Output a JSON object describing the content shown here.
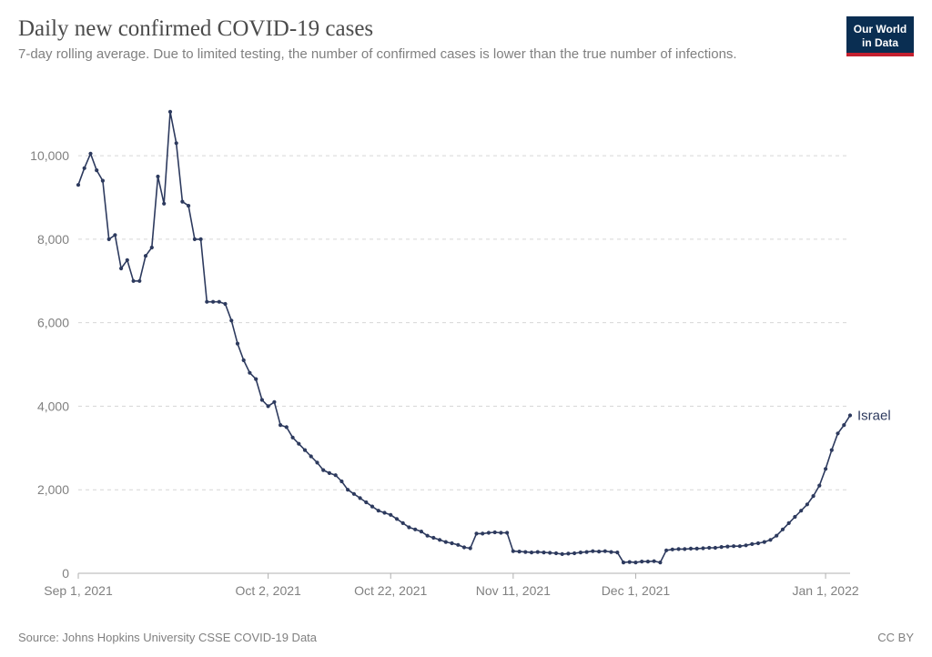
{
  "header": {
    "title": "Daily new confirmed COVID-19 cases",
    "subtitle": "7-day rolling average. Due to limited testing, the number of confirmed cases is lower than the true number of infections."
  },
  "logo": {
    "line1": "Our World",
    "line2": "in Data"
  },
  "footer": {
    "source": "Source: Johns Hopkins University CSSE COVID-19 Data",
    "license": "CC BY"
  },
  "chart": {
    "type": "line",
    "background_color": "#ffffff",
    "grid_color": "#d6d6d6",
    "axis_text_color": "#808080",
    "axis_fontsize": 14,
    "title_color": "#4b4b4b",
    "title_fontsize": 25,
    "subtitle_color": "#808080",
    "subtitle_fontsize": 15,
    "ylim": [
      0,
      11200
    ],
    "ytick_values": [
      0,
      2000,
      4000,
      6000,
      8000,
      10000
    ],
    "ytick_labels": [
      "0",
      "2,000",
      "4,000",
      "6,000",
      "8,000",
      "10,000"
    ],
    "x_index_range": [
      0,
      126
    ],
    "xtick_indices": [
      0,
      31,
      51,
      71,
      91,
      122
    ],
    "xtick_labels": [
      "Sep 1, 2021",
      "Oct 2, 2021",
      "Oct 22, 2021",
      "Nov 11, 2021",
      "Dec 1, 2021",
      "Jan 1, 2022"
    ],
    "series": [
      {
        "label": "Israel",
        "color": "#2d3a5e",
        "line_width": 1.6,
        "marker": "circle",
        "marker_radius": 2.1,
        "values": [
          9300,
          9700,
          10050,
          9650,
          9400,
          8000,
          8100,
          7300,
          7500,
          7000,
          7000,
          7600,
          7800,
          9500,
          8850,
          11050,
          10300,
          8900,
          8800,
          8000,
          8000,
          6500,
          6500,
          6500,
          6450,
          6050,
          5500,
          5100,
          4800,
          4650,
          4150,
          4000,
          4100,
          3550,
          3500,
          3250,
          3100,
          2950,
          2800,
          2650,
          2470,
          2400,
          2350,
          2200,
          2000,
          1900,
          1800,
          1700,
          1600,
          1500,
          1450,
          1400,
          1300,
          1200,
          1100,
          1050,
          1000,
          900,
          850,
          800,
          750,
          720,
          680,
          620,
          600,
          950,
          950,
          970,
          980,
          970,
          970,
          530,
          520,
          510,
          500,
          510,
          500,
          490,
          480,
          460,
          470,
          480,
          500,
          510,
          530,
          520,
          530,
          510,
          500,
          260,
          270,
          260,
          280,
          280,
          290,
          260,
          550,
          570,
          580,
          580,
          590,
          590,
          600,
          610,
          610,
          630,
          640,
          650,
          650,
          670,
          700,
          720,
          750,
          800,
          900,
          1050,
          1200,
          1350,
          1500,
          1650,
          1850,
          2100,
          2500,
          2950,
          3350,
          3550,
          3780
        ]
      }
    ]
  }
}
